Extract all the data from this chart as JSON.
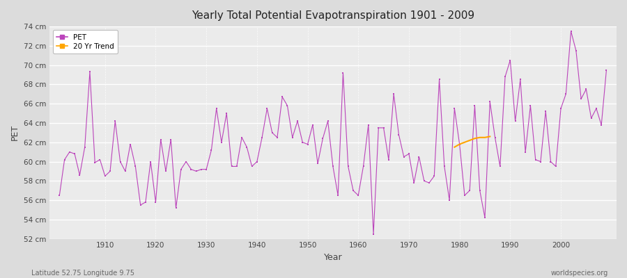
{
  "title": "Yearly Total Potential Evapotranspiration 1901 - 2009",
  "xlabel": "Year",
  "ylabel": "PET",
  "lat_lon_label": "Latitude 52.75 Longitude 9.75",
  "watermark": "worldspecies.org",
  "ylim": [
    52,
    74
  ],
  "ytick_labels": [
    "52 cm",
    "54 cm",
    "56 cm",
    "58 cm",
    "60 cm",
    "62 cm",
    "64 cm",
    "66 cm",
    "68 cm",
    "70 cm",
    "72 cm",
    "74 cm"
  ],
  "ytick_values": [
    52,
    54,
    56,
    58,
    60,
    62,
    64,
    66,
    68,
    70,
    72,
    74
  ],
  "xlim": [
    1899,
    2011
  ],
  "pet_color": "#bb44bb",
  "trend_color": "#FFA500",
  "bg_color": "#dcdcdc",
  "plot_bg_color": "#ebebeb",
  "connected_segments": [
    [
      1901,
      56.5
    ],
    [
      1902,
      60.2
    ],
    [
      1903,
      61.0
    ],
    [
      1904,
      60.8
    ],
    [
      1905,
      58.6
    ],
    [
      1906,
      61.5
    ],
    [
      1907,
      69.3
    ],
    [
      1908,
      59.9
    ],
    [
      1909,
      60.2
    ],
    [
      1910,
      58.5
    ],
    [
      1911,
      59.0
    ],
    [
      1912,
      64.2
    ],
    [
      1913,
      60.0
    ],
    [
      1914,
      59.0
    ],
    [
      1915,
      61.8
    ],
    [
      1916,
      59.5
    ],
    [
      1917,
      55.5
    ],
    [
      1918,
      55.8
    ],
    [
      1919,
      60.0
    ],
    [
      1920,
      55.8
    ],
    [
      1921,
      62.3
    ],
    [
      1922,
      59.0
    ],
    [
      1923,
      62.3
    ],
    [
      1924,
      55.2
    ],
    [
      1925,
      59.2
    ],
    [
      1926,
      60.0
    ],
    [
      1927,
      59.2
    ],
    [
      1928,
      59.0
    ],
    [
      1929,
      59.2
    ],
    [
      1930,
      59.2
    ],
    [
      1931,
      61.2
    ],
    [
      1932,
      null
    ],
    [
      1933,
      null
    ],
    [
      1934,
      null
    ],
    [
      1935,
      null
    ],
    [
      1936,
      null
    ],
    [
      1937,
      null
    ],
    [
      1938,
      null
    ],
    [
      1939,
      null
    ],
    [
      1940,
      null
    ],
    [
      1941,
      null
    ],
    [
      1942,
      null
    ],
    [
      1943,
      null
    ],
    [
      1944,
      null
    ],
    [
      1945,
      null
    ],
    [
      1946,
      null
    ],
    [
      1947,
      null
    ],
    [
      1948,
      null
    ],
    [
      1949,
      null
    ],
    [
      1950,
      null
    ],
    [
      1951,
      null
    ],
    [
      1952,
      null
    ],
    [
      1953,
      null
    ],
    [
      1954,
      null
    ],
    [
      1955,
      null
    ],
    [
      1956,
      null
    ],
    [
      1957,
      69.2
    ],
    [
      1958,
      null
    ],
    [
      1959,
      null
    ],
    [
      1960,
      null
    ],
    [
      1961,
      null
    ],
    [
      1962,
      null
    ],
    [
      1963,
      52.5
    ],
    [
      1964,
      null
    ],
    [
      1965,
      null
    ],
    [
      1966,
      null
    ],
    [
      1967,
      null
    ],
    [
      1968,
      null
    ],
    [
      1969,
      null
    ],
    [
      1970,
      null
    ],
    [
      1971,
      null
    ],
    [
      1972,
      null
    ],
    [
      1973,
      null
    ],
    [
      1974,
      null
    ],
    [
      1975,
      null
    ],
    [
      1976,
      null
    ],
    [
      1977,
      null
    ],
    [
      1978,
      null
    ],
    [
      1979,
      null
    ],
    [
      1980,
      null
    ],
    [
      1981,
      null
    ],
    [
      1982,
      null
    ],
    [
      1983,
      null
    ],
    [
      1984,
      null
    ],
    [
      1985,
      null
    ],
    [
      1986,
      null
    ],
    [
      1987,
      null
    ],
    [
      1988,
      null
    ],
    [
      1989,
      null
    ],
    [
      1990,
      null
    ],
    [
      1991,
      null
    ],
    [
      1992,
      null
    ],
    [
      1993,
      null
    ],
    [
      1994,
      null
    ],
    [
      1995,
      null
    ],
    [
      1996,
      null
    ],
    [
      1997,
      null
    ],
    [
      1998,
      null
    ],
    [
      1999,
      null
    ],
    [
      2000,
      null
    ],
    [
      2001,
      null
    ],
    [
      2002,
      null
    ],
    [
      2003,
      null
    ],
    [
      2004,
      null
    ],
    [
      2005,
      null
    ],
    [
      2006,
      null
    ],
    [
      2007,
      null
    ],
    [
      2008,
      null
    ],
    [
      2009,
      null
    ]
  ],
  "years": [
    1901,
    1902,
    1903,
    1904,
    1905,
    1906,
    1907,
    1908,
    1909,
    1910,
    1911,
    1912,
    1913,
    1914,
    1915,
    1916,
    1917,
    1918,
    1919,
    1920,
    1921,
    1922,
    1923,
    1924,
    1925,
    1926,
    1927,
    1928,
    1929,
    1930,
    1931,
    1932,
    1933,
    1934,
    1935,
    1936,
    1937,
    1938,
    1939,
    1940,
    1941,
    1942,
    1943,
    1944,
    1945,
    1946,
    1947,
    1948,
    1949,
    1950,
    1951,
    1952,
    1953,
    1954,
    1955,
    1956,
    1957,
    1958,
    1959,
    1960,
    1961,
    1962,
    1963,
    1964,
    1965,
    1966,
    1967,
    1968,
    1969,
    1970,
    1971,
    1972,
    1973,
    1974,
    1975,
    1976,
    1977,
    1978,
    1979,
    1980,
    1981,
    1982,
    1983,
    1984,
    1985,
    1986,
    1987,
    1988,
    1989,
    1990,
    1991,
    1992,
    1993,
    1994,
    1995,
    1996,
    1997,
    1998,
    1999,
    2000,
    2001,
    2002,
    2003,
    2004,
    2005,
    2006,
    2007,
    2008,
    2009
  ],
  "pet_values": [
    56.5,
    60.2,
    61.0,
    60.8,
    58.6,
    61.5,
    69.3,
    59.9,
    60.2,
    58.5,
    59.0,
    64.2,
    60.0,
    59.0,
    61.8,
    59.5,
    55.5,
    55.8,
    60.0,
    55.8,
    62.3,
    59.0,
    62.3,
    55.2,
    59.2,
    60.0,
    59.2,
    59.0,
    59.2,
    59.2,
    61.2,
    65.5,
    62.0,
    65.0,
    59.5,
    59.5,
    62.5,
    61.5,
    59.5,
    60.0,
    62.5,
    65.5,
    63.0,
    62.5,
    66.7,
    65.8,
    62.5,
    64.2,
    62.0,
    61.8,
    63.8,
    59.8,
    62.4,
    64.2,
    59.5,
    56.5,
    69.2,
    59.5,
    57.0,
    56.5,
    59.5,
    63.8,
    52.5,
    63.5,
    63.5,
    60.2,
    67.0,
    62.8,
    60.5,
    60.8,
    57.8,
    60.5,
    58.0,
    57.8,
    58.5,
    68.5,
    59.5,
    56.0,
    65.5,
    61.8,
    56.5,
    57.0,
    65.8,
    57.0,
    54.2,
    66.2,
    62.5,
    59.5,
    68.8,
    70.5,
    64.2,
    68.5,
    61.0,
    65.8,
    60.2,
    60.0,
    65.2,
    60.0,
    59.5,
    65.5,
    67.0,
    73.5,
    71.5,
    66.5,
    67.5,
    64.5,
    65.5,
    63.8,
    69.5
  ],
  "trend_years": [
    1979,
    1980,
    1981,
    1982,
    1983,
    1984,
    1985,
    1986
  ],
  "trend_values": [
    61.5,
    61.8,
    62.0,
    62.2,
    62.4,
    62.5,
    62.5,
    62.6
  ]
}
